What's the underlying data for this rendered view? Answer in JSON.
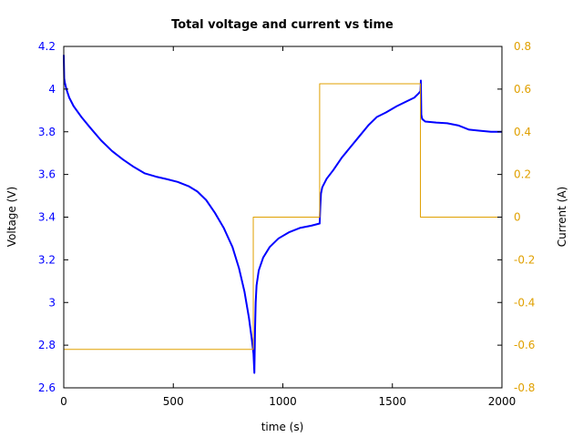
{
  "chart_data": {
    "type": "line",
    "title": "Total voltage and current vs time",
    "xlabel": "time (s)",
    "ylabel_left": "Voltage (V)",
    "ylabel_right": "Current (A)",
    "xlim": [
      0,
      2000
    ],
    "ylim_left": [
      2.6,
      4.2
    ],
    "ylim_right": [
      -0.8,
      0.8
    ],
    "x_ticks": [
      "0",
      "500",
      "1000",
      "1500",
      "2000"
    ],
    "x_tick_values": [
      0,
      500,
      1000,
      1500,
      2000
    ],
    "y_left_ticks": [
      "2.6",
      "2.8",
      "3",
      "3.2",
      "3.4",
      "3.6",
      "3.8",
      "4",
      "4.2"
    ],
    "y_left_tick_values": [
      2.6,
      2.8,
      3.0,
      3.2,
      3.4,
      3.6,
      3.8,
      4.0,
      4.2
    ],
    "y_right_ticks": [
      "-0.8",
      "-0.6",
      "-0.4",
      "-0.2",
      "0",
      "0.2",
      "0.4",
      "0.6",
      "0.8"
    ],
    "y_right_tick_values": [
      -0.8,
      -0.6,
      -0.4,
      -0.2,
      0,
      0.2,
      0.4,
      0.6,
      0.8
    ],
    "grid": false,
    "colors": {
      "voltage": "#0000ff",
      "current": "#e0a000",
      "axes": "#000000"
    },
    "series": [
      {
        "axis": "left",
        "x": [
          0,
          2,
          5,
          12,
          25,
          45,
          80,
          120,
          170,
          220,
          270,
          320,
          370,
          420,
          470,
          520,
          570,
          610,
          650,
          690,
          730,
          770,
          800,
          825,
          845,
          858,
          866,
          870,
          873,
          876,
          880,
          890,
          910,
          940,
          980,
          1030,
          1080,
          1130,
          1168,
          1171,
          1174,
          1180,
          1200,
          1230,
          1270,
          1310,
          1350,
          1390,
          1430,
          1470,
          1520,
          1570,
          1600,
          1620,
          1628,
          1630,
          1632,
          1636,
          1650,
          1700,
          1750,
          1800,
          1850,
          1900,
          1950,
          2000
        ],
        "y": [
          4.16,
          4.05,
          4.03,
          4.0,
          3.96,
          3.92,
          3.87,
          3.82,
          3.76,
          3.71,
          3.67,
          3.635,
          3.605,
          3.59,
          3.578,
          3.565,
          3.545,
          3.52,
          3.48,
          3.42,
          3.35,
          3.26,
          3.16,
          3.05,
          2.93,
          2.83,
          2.76,
          2.67,
          2.87,
          3.0,
          3.08,
          3.15,
          3.21,
          3.26,
          3.3,
          3.33,
          3.35,
          3.36,
          3.37,
          3.45,
          3.51,
          3.54,
          3.58,
          3.62,
          3.68,
          3.73,
          3.78,
          3.83,
          3.87,
          3.89,
          3.92,
          3.945,
          3.96,
          3.98,
          3.99,
          4.04,
          3.88,
          3.86,
          3.848,
          3.843,
          3.84,
          3.83,
          3.81,
          3.805,
          3.8,
          3.8
        ]
      },
      {
        "axis": "right",
        "x": [
          0,
          0,
          865,
          865,
          1168,
          1168,
          1628,
          1628,
          2000
        ],
        "y": [
          0,
          -0.62,
          -0.62,
          0,
          0,
          0.625,
          0.625,
          0,
          0
        ]
      }
    ]
  }
}
